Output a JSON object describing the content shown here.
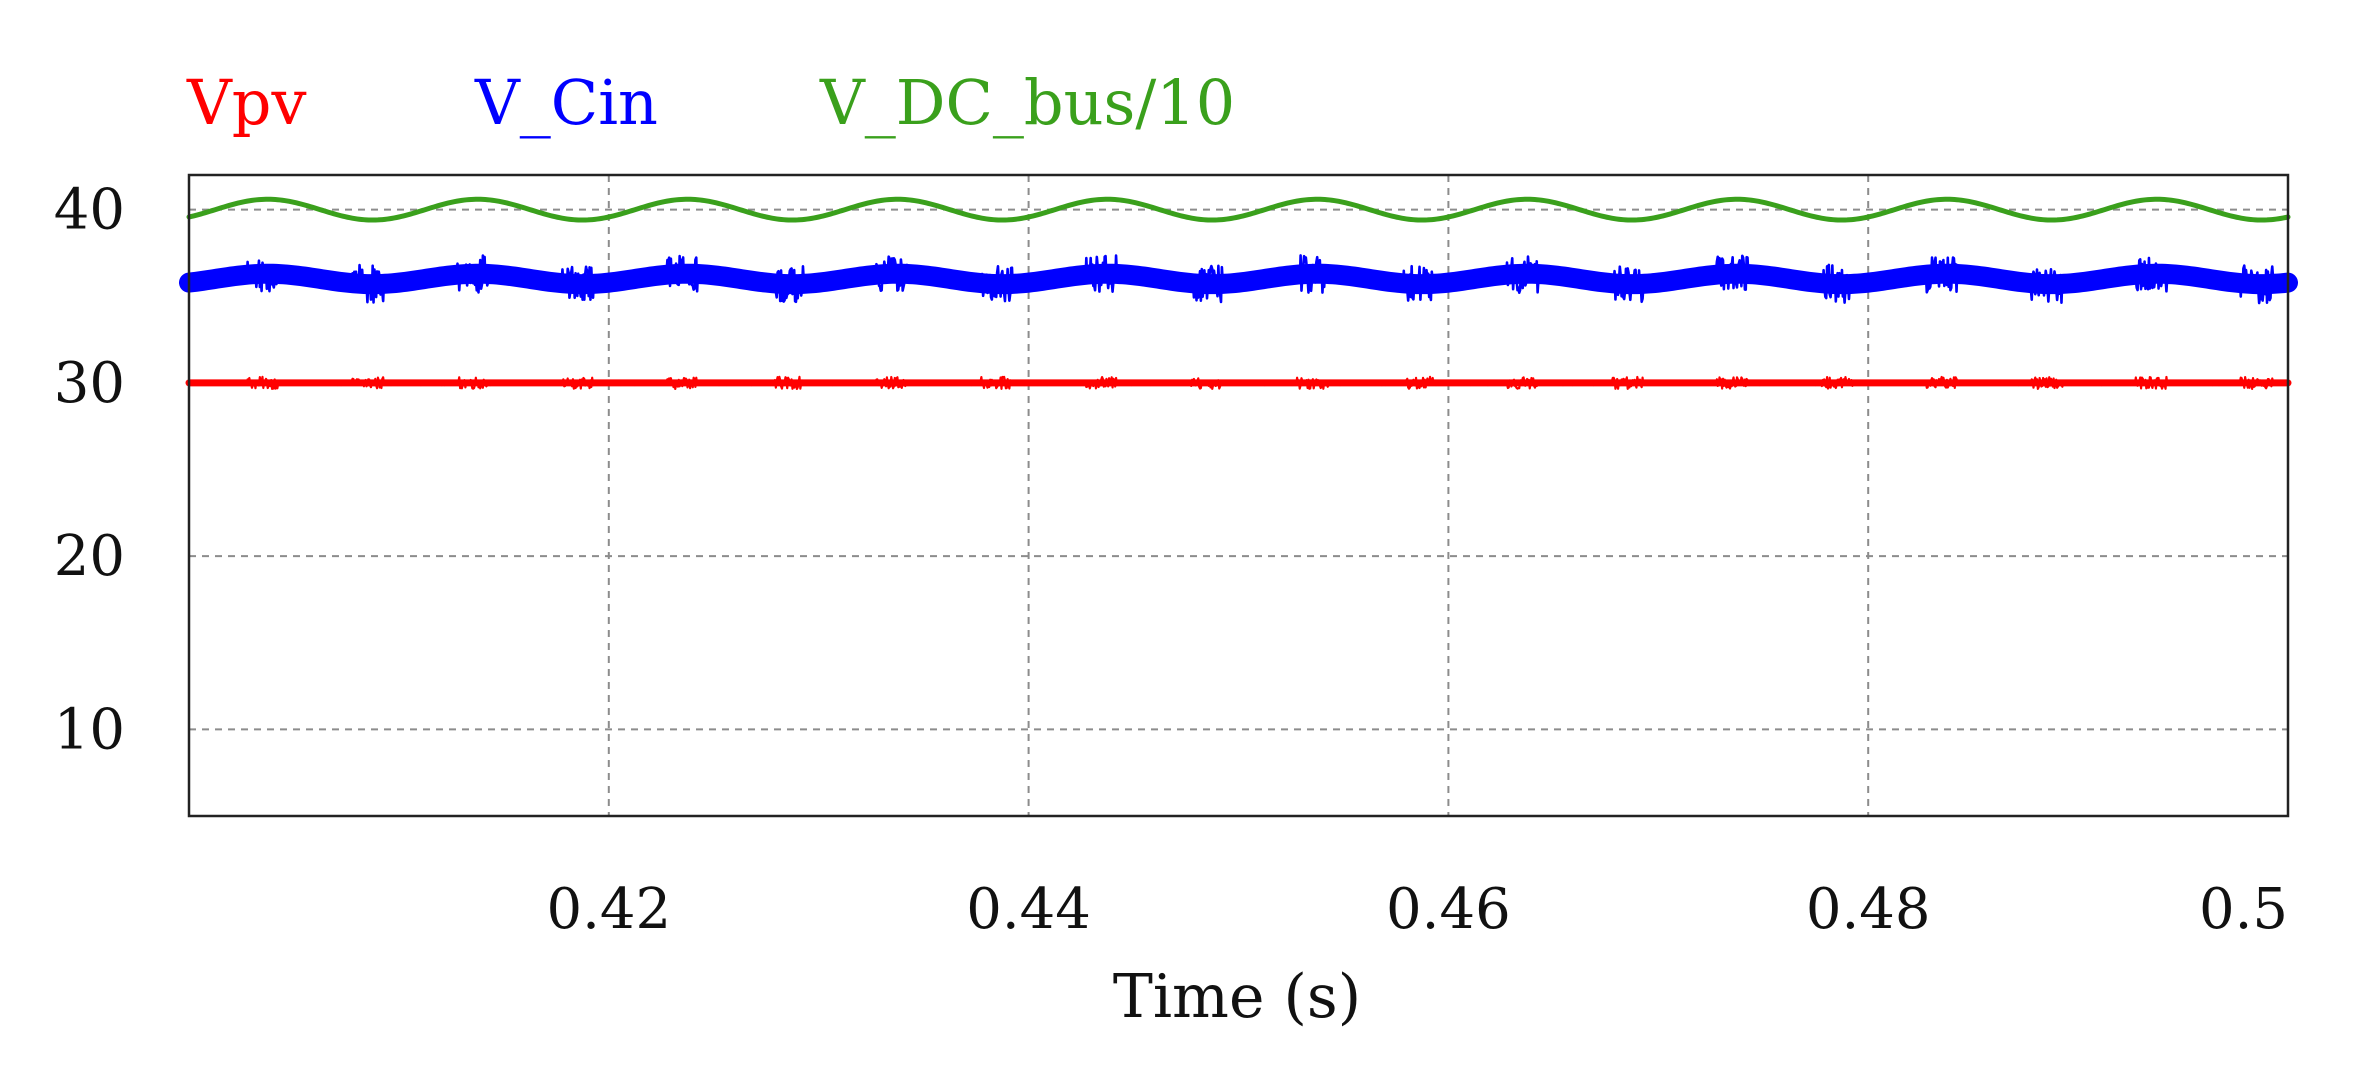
{
  "chart_data": {
    "type": "line",
    "title": "",
    "xlabel": "Time (s)",
    "ylabel": "",
    "xlim": [
      0.4,
      0.5
    ],
    "ylim": [
      5,
      42
    ],
    "x_ticks": [
      0.42,
      0.44,
      0.46,
      0.48,
      0.5
    ],
    "x_tick_labels": [
      "0.42",
      "0.44",
      "0.46",
      "0.48",
      "0.5"
    ],
    "y_ticks": [
      10,
      20,
      30,
      40
    ],
    "y_tick_labels": [
      "10",
      "20",
      "30",
      "40"
    ],
    "grid": true,
    "legend_position": "top-left, above plot",
    "series": [
      {
        "name": "Vpv",
        "color": "#ff0000",
        "mean": 30.0,
        "ripple_amplitude": 0.0,
        "ripple_frequency_hz": 100,
        "noise_amplitude": 0.35
      },
      {
        "name": "V_Cin",
        "color": "#0000ff",
        "mean": 36.0,
        "ripple_amplitude": 0.3,
        "ripple_frequency_hz": 100,
        "noise_amplitude": 1.1
      },
      {
        "name": "V_DC_bus/10",
        "color": "#3aa01c",
        "mean": 40.0,
        "ripple_amplitude": 0.6,
        "ripple_frequency_hz": 100,
        "noise_amplitude": 0.0
      }
    ]
  }
}
